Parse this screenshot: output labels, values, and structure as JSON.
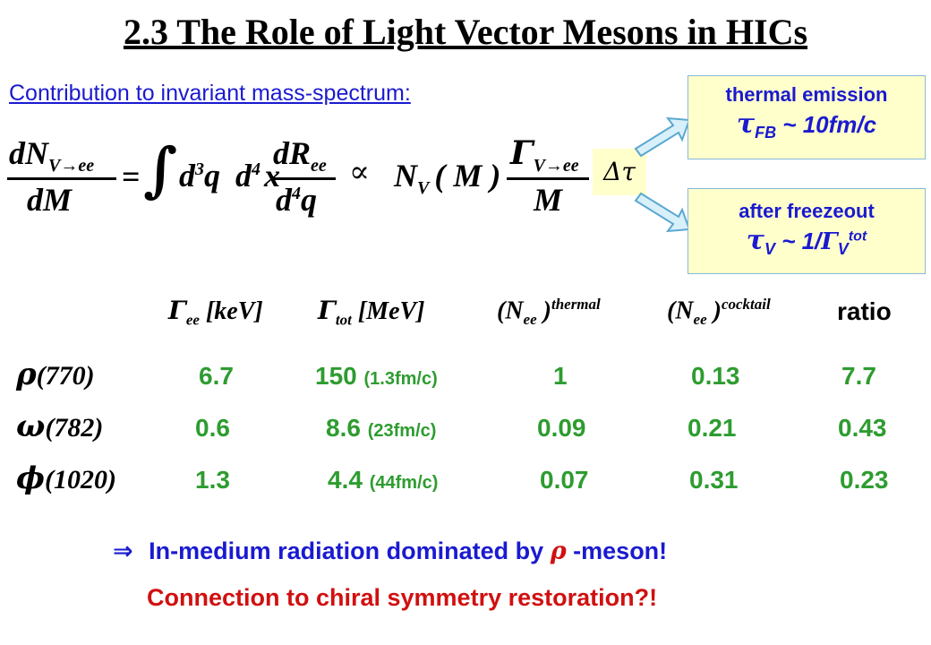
{
  "title": "2.3 The Role of Light Vector Mesons in HICs",
  "subtitle": "Contribution to invariant mass-spectrum:",
  "formula": {
    "lhs_num_main": "dN",
    "lhs_num_sub": "V→ee",
    "lhs_den": "dM",
    "equals": "=",
    "integral": "∫",
    "d3q": "d",
    "d3q_exp": "3",
    "q": "q",
    "d4x": "d",
    "d4x_exp": "4",
    "x": "x",
    "rhs_num_main": "dR",
    "rhs_num_sub": "ee",
    "rhs_den_main": "d",
    "rhs_den_exp": "4",
    "rhs_den_q": "q",
    "propto": "∝",
    "nv_main": "N",
    "nv_sub": "V",
    "nv_arg": "( M )",
    "gamma_num_main": "Γ",
    "gamma_num_sub": "V→ee",
    "gamma_den": "M",
    "delta_tau": "Δτ"
  },
  "box_thermal": {
    "label": "thermal emission",
    "tau": "τ",
    "tau_sub": "FB",
    "value": " ~ 10fm/c"
  },
  "box_freezeout": {
    "label": "after freezeout",
    "tau": "τ",
    "tau_sub": "V",
    "value": " ~ 1/",
    "gamma": "Γ",
    "gamma_sub": "V",
    "gamma_sup": "tot"
  },
  "headers": {
    "gamma_ee": "Γ",
    "gamma_ee_sub": "ee",
    "gamma_ee_unit": " [keV]",
    "gamma_tot": "Γ",
    "gamma_tot_sub": "tot",
    "gamma_tot_unit": " [MeV]",
    "nee_thermal_open": "(N",
    "nee_thermal_sub": "ee",
    "nee_thermal_close": " )",
    "nee_thermal_sup": "thermal",
    "nee_cocktail_open": "(N",
    "nee_cocktail_sub": "ee",
    "nee_cocktail_close": " )",
    "nee_cocktail_sup": "cocktail",
    "ratio": "ratio"
  },
  "rows": [
    {
      "symbol": "ρ",
      "mass": "(770)",
      "gamma_ee": "6.7",
      "gamma_tot": "150",
      "lifetime": "(1.3fm/c)",
      "thermal": "1",
      "cocktail": "0.13",
      "ratio": "7.7"
    },
    {
      "symbol": "ω",
      "mass": "(782)",
      "gamma_ee": "0.6",
      "gamma_tot": "8.6",
      "lifetime": "(23fm/c)",
      "thermal": "0.09",
      "cocktail": "0.21",
      "ratio": "0.43"
    },
    {
      "symbol": "ϕ",
      "mass": "(1020)",
      "gamma_ee": "1.3",
      "gamma_tot": "4.4",
      "lifetime": "(44fm/c)",
      "thermal": "0.07",
      "cocktail": "0.31",
      "ratio": "0.23"
    }
  ],
  "conclusion": {
    "arrow": "⇒",
    "text1": "In-medium radiation dominated by ",
    "rho": "ρ",
    "text2": " -meson!",
    "text3": "Connection to chiral symmetry restoration?!"
  },
  "colors": {
    "blue": "#1a1ad0",
    "green": "#2e9c30",
    "red": "#d01010",
    "box_fill": "#ffffcc",
    "arrow_fill": "#d8f0fa",
    "arrow_stroke": "#5aa8d0"
  }
}
